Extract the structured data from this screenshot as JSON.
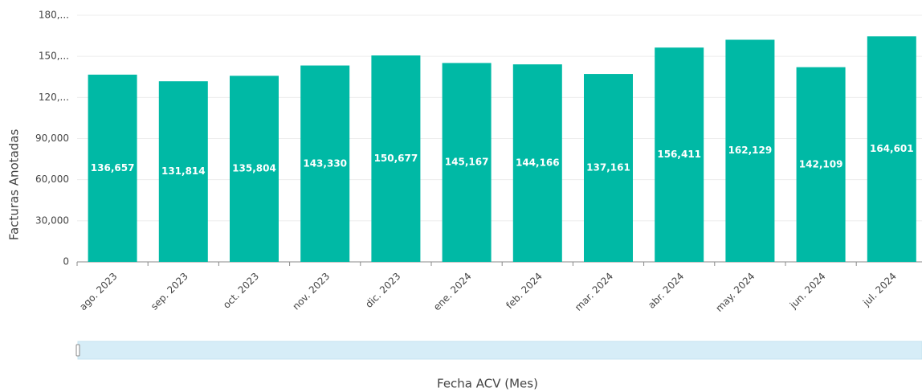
{
  "chart_data": {
    "type": "bar",
    "categories": [
      "ago. 2023",
      "sep. 2023",
      "oct. 2023",
      "nov. 2023",
      "dic. 2023",
      "ene. 2024",
      "feb. 2024",
      "mar. 2024",
      "abr. 2024",
      "may. 2024",
      "jun. 2024",
      "jul. 2024"
    ],
    "values": [
      136657,
      131814,
      135804,
      143330,
      150677,
      145167,
      144166,
      137161,
      156411,
      162129,
      142109,
      164601
    ],
    "value_labels": [
      "136,657",
      "131,814",
      "135,804",
      "143,330",
      "150,677",
      "145,167",
      "144,166",
      "137,161",
      "156,411",
      "162,129",
      "142,109",
      "164,601"
    ],
    "color": "#00b9a5",
    "ylim": [
      0,
      180000
    ],
    "yticks": [
      0,
      {
        "value": 30000,
        "label": "30,000"
      },
      {
        "value": 60000,
        "label": "60,000"
      },
      {
        "value": 90000,
        "label": "90,000"
      },
      {
        "value": 120000,
        "label": "120,..."
      },
      {
        "value": 150000,
        "label": "150,..."
      },
      {
        "value": 180000,
        "label": "180,..."
      }
    ],
    "grid": true,
    "ylabel": "Facturas Anotadas",
    "xlabel": "Fecha ACV (Mes)"
  }
}
